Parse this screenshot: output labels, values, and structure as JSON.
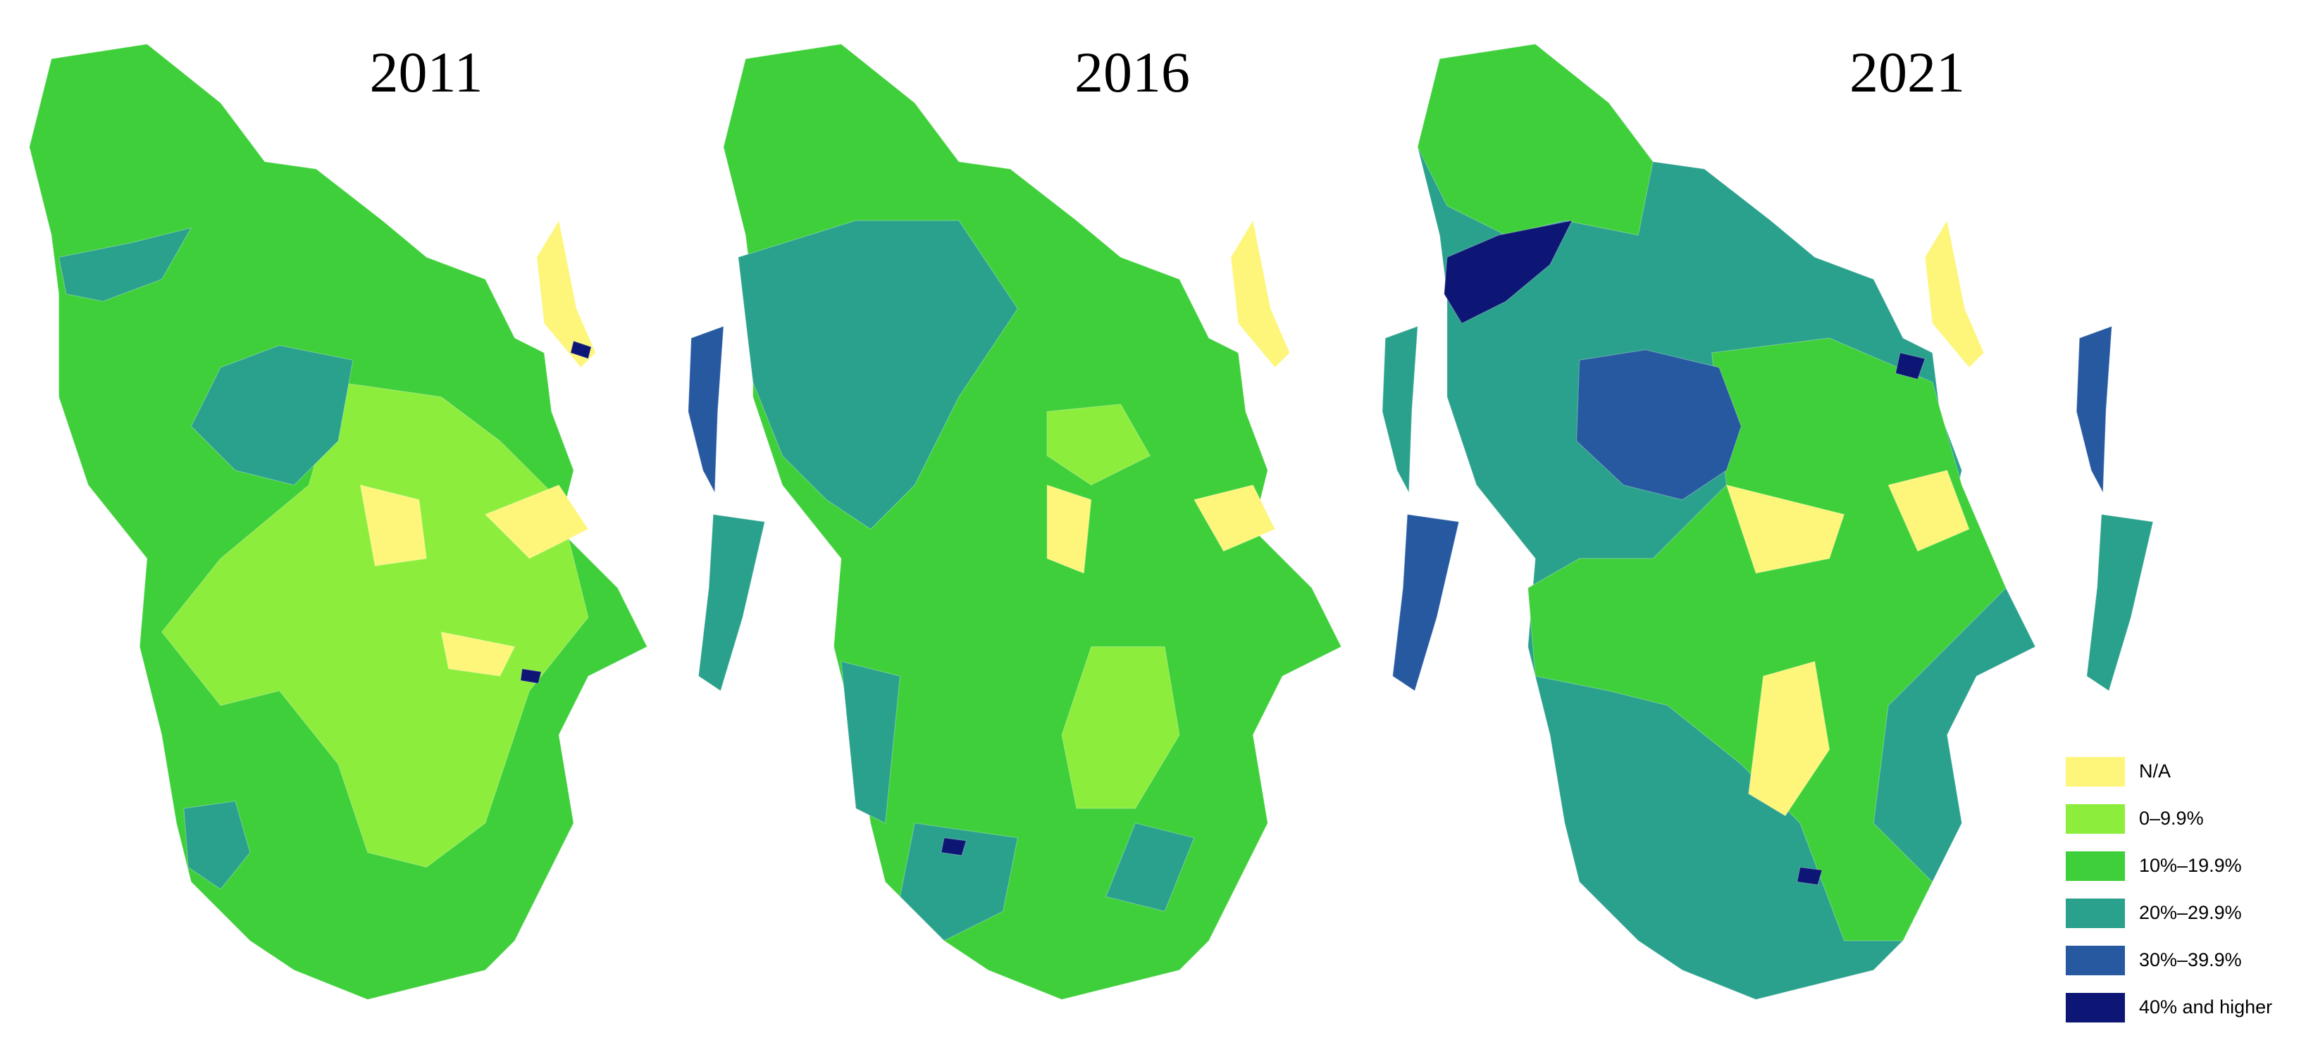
{
  "panels": [
    {
      "title": "2011"
    },
    {
      "title": "2016"
    },
    {
      "title": "2021"
    }
  ],
  "legend": {
    "items": [
      {
        "label": "N/A",
        "color": "#fdf67a"
      },
      {
        "label": "0–9.9%",
        "color": "#8ced3c"
      },
      {
        "label": "10%–19.9%",
        "color": "#3fcf3a"
      },
      {
        "label": "20%–29.9%",
        "color": "#2aa18c"
      },
      {
        "label": "30%–39.9%",
        "color": "#2659a0"
      },
      {
        "label": "40% and higher",
        "color": "#0d1675"
      }
    ]
  }
}
